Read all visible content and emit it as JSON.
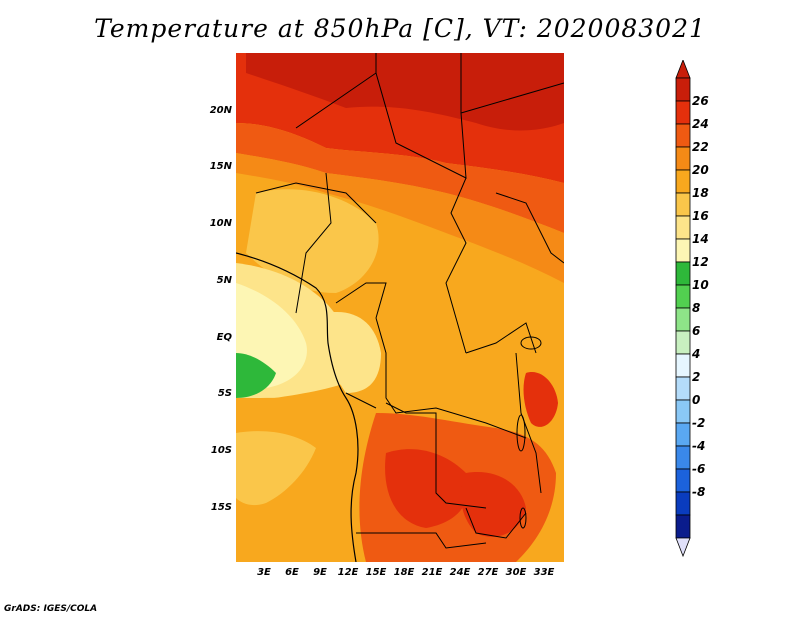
{
  "title": "Temperature at 850hPa [C], VT: 2020083021",
  "footer": "GrADS: IGES/COLA",
  "lat_labels": [
    "20N",
    "15N",
    "10N",
    "5N",
    "EQ",
    "5S",
    "10S",
    "15S"
  ],
  "lon_labels": [
    "3E",
    "6E",
    "9E",
    "12E",
    "15E",
    "18E",
    "21E",
    "24E",
    "27E",
    "30E",
    "33E"
  ],
  "colorbar": {
    "labels": [
      "26",
      "24",
      "22",
      "20",
      "18",
      "16",
      "14",
      "12",
      "10",
      "8",
      "6",
      "4",
      "2",
      "0",
      "-2",
      "-4",
      "-6",
      "-8"
    ],
    "colors": [
      "#c81e0a",
      "#e4300c",
      "#ef5a12",
      "#f58a16",
      "#f8a81e",
      "#fac64a",
      "#fde48a",
      "#fdf6b4",
      "#2eb83a",
      "#52d050",
      "#8ee488",
      "#c8f0c0",
      "#e6f6ff",
      "#b4dcfa",
      "#8ac8f6",
      "#5aa8f2",
      "#3a88ea",
      "#1c62dc",
      "#0a3cbe",
      "#0a1c8c"
    ],
    "top_color": "#c81e0a",
    "bottom_color": "#e0e0fa"
  }
}
